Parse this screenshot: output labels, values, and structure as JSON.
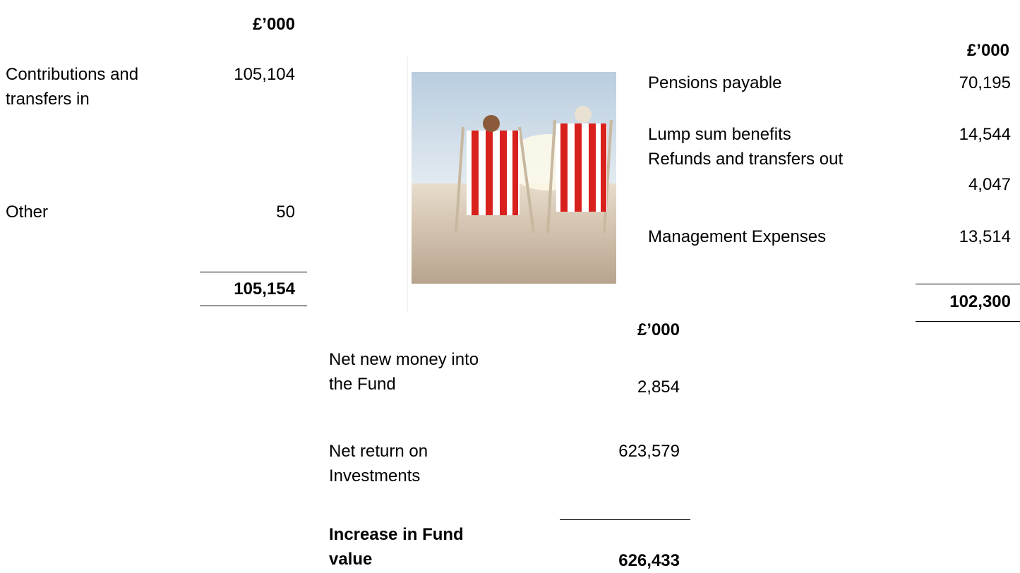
{
  "income": {
    "unit": "£’000",
    "rows": [
      {
        "label": "Contributions and transfers in",
        "value": "105,104"
      },
      {
        "label": "Other",
        "value": "50"
      }
    ],
    "total": "105,154"
  },
  "expenditure": {
    "unit": "£’000",
    "rows": [
      {
        "label": "Pensions payable",
        "value": "70,195"
      },
      {
        "label": "Lump sum benefits",
        "value": "14,544"
      },
      {
        "label": "Refunds and transfers out",
        "value": "4,047"
      },
      {
        "label": "Management Expenses",
        "value": "13,514"
      }
    ],
    "total": "102,300"
  },
  "net": {
    "unit": "£’000",
    "rows": [
      {
        "label": "Net new money into the Fund",
        "value": "2,854"
      },
      {
        "label": "Net return on Investments",
        "value": "623,579"
      }
    ],
    "total_label": "Increase in Fund value",
    "total": "626,433"
  }
}
